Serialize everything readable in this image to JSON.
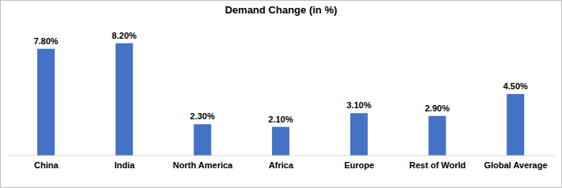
{
  "chart_data": {
    "type": "bar",
    "title": "Demand Change (in %)",
    "categories": [
      "China",
      "India",
      "North America",
      "Africa",
      "Europe",
      "Rest of World",
      "Global Average"
    ],
    "values": [
      7.8,
      8.2,
      2.3,
      2.1,
      3.1,
      2.9,
      4.5
    ],
    "value_labels": [
      "7.80%",
      "8.20%",
      "2.30%",
      "2.10%",
      "3.10%",
      "2.90%",
      "4.50%"
    ],
    "color": "#4472c4",
    "ylim": [
      0,
      9
    ],
    "grid": false,
    "data_labels": true,
    "tick_labels": "x"
  }
}
